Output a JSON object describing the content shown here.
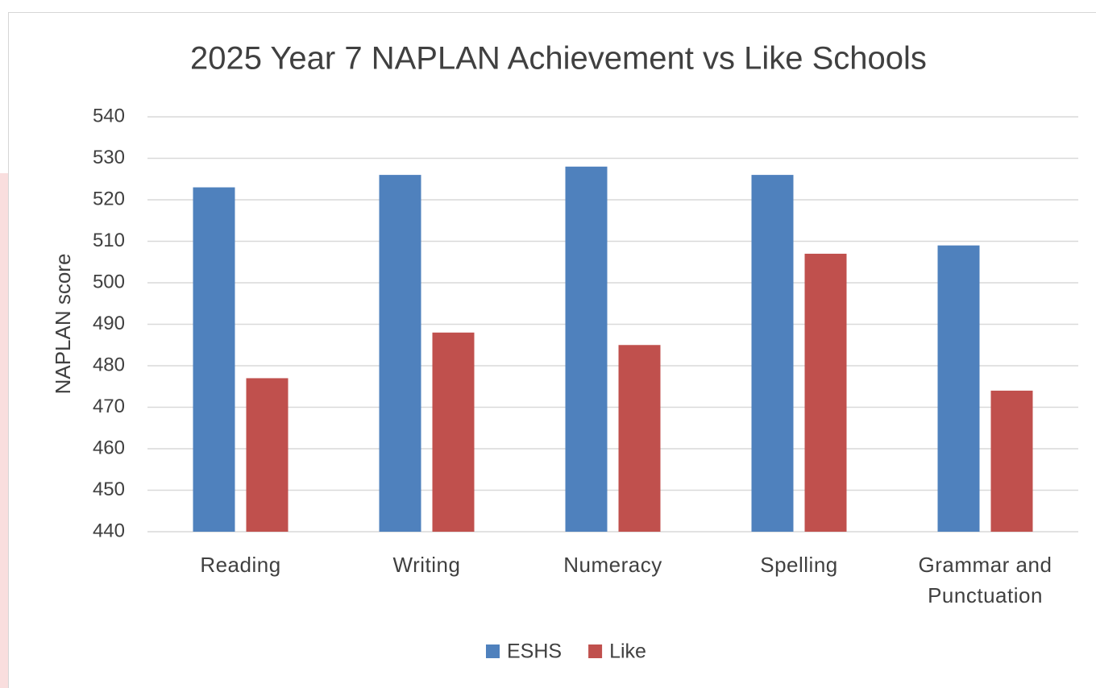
{
  "chart_data": {
    "type": "bar",
    "title": "2025 Year 7 NAPLAN Achievement vs Like Schools",
    "y_label": "NAPLAN score",
    "categories": [
      "Reading",
      "Writing",
      "Numeracy",
      "Spelling",
      "Grammar and Punctuation"
    ],
    "series": [
      {
        "name": "ESHS",
        "color": "#4f81bd",
        "values": [
          523,
          526,
          528,
          526,
          509
        ]
      },
      {
        "name": "Like",
        "color": "#c0504d",
        "values": [
          477,
          488,
          485,
          507,
          474
        ]
      }
    ],
    "ylim": [
      440,
      540
    ],
    "yticks": [
      440,
      450,
      460,
      470,
      480,
      490,
      500,
      510,
      520,
      530,
      540
    ],
    "grid": true,
    "legend": "bottom"
  }
}
